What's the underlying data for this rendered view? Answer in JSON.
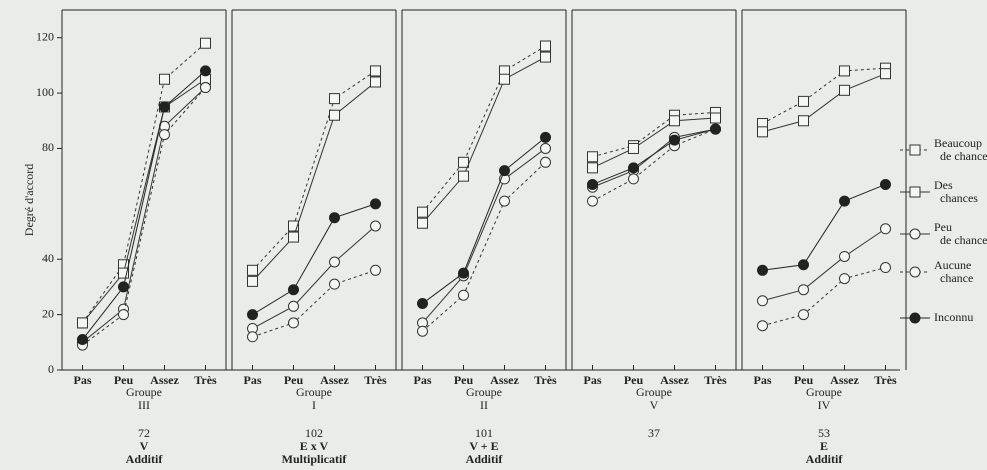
{
  "chart_data": [
    {
      "type": "line",
      "y_label": "Degré d'accord",
      "ylim": [
        0,
        130
      ],
      "yticks": [
        0,
        20,
        40,
        80,
        100,
        120
      ],
      "categories": [
        "Pas",
        "Peu",
        "Assez",
        "Très"
      ],
      "x_label": "Groupe",
      "group": "III",
      "number": "72",
      "code": "V",
      "model": "Additif",
      "series": [
        {
          "name": "Beaucoup de chances",
          "color": "#333",
          "marker": "square",
          "dashed": true,
          "values": [
            17,
            38,
            105,
            118
          ]
        },
        {
          "name": "Des chances",
          "color": "#333",
          "marker": "square",
          "dashed": false,
          "values": [
            17,
            35,
            95,
            105
          ]
        },
        {
          "name": "Peu de chances",
          "color": "#333",
          "marker": "circle",
          "dashed": false,
          "values": [
            10,
            22,
            88,
            102
          ]
        },
        {
          "name": "Aucune chance",
          "color": "#333",
          "marker": "circle",
          "dashed": true,
          "values": [
            9,
            20,
            85,
            102
          ]
        },
        {
          "name": "Inconnu",
          "color": "#222",
          "marker": "filled",
          "dashed": false,
          "values": [
            11,
            30,
            95,
            108
          ]
        }
      ]
    },
    {
      "type": "line",
      "categories": [
        "Pas",
        "Peu",
        "Assez",
        "Très"
      ],
      "x_label": "Groupe",
      "group": "I",
      "number": "102",
      "code": "E x V",
      "model": "Multiplicatif",
      "series": [
        {
          "values": [
            36,
            52,
            98,
            108
          ]
        },
        {
          "values": [
            32,
            48,
            92,
            104
          ]
        },
        {
          "values": [
            15,
            23,
            39,
            52
          ]
        },
        {
          "values": [
            12,
            17,
            31,
            36
          ]
        },
        {
          "values": [
            20,
            29,
            55,
            60
          ]
        }
      ]
    },
    {
      "type": "line",
      "categories": [
        "Pas",
        "Peu",
        "Assez",
        "Très"
      ],
      "x_label": "Groupe",
      "group": "II",
      "number": "101",
      "code": "V + E",
      "model": "Additif",
      "series": [
        {
          "values": [
            57,
            75,
            108,
            117
          ]
        },
        {
          "values": [
            53,
            70,
            105,
            113
          ]
        },
        {
          "values": [
            17,
            34,
            69,
            80
          ]
        },
        {
          "values": [
            14,
            27,
            61,
            75
          ]
        },
        {
          "values": [
            24,
            35,
            72,
            84
          ]
        }
      ]
    },
    {
      "type": "line",
      "categories": [
        "Pas",
        "Peu",
        "Assez",
        "Très"
      ],
      "x_label": "Groupe",
      "group": "V",
      "number": "37",
      "series": [
        {
          "values": [
            77,
            81,
            92,
            93
          ]
        },
        {
          "values": [
            73,
            80,
            90,
            91
          ]
        },
        {
          "values": [
            66,
            72,
            84,
            87
          ]
        },
        {
          "values": [
            61,
            69,
            81,
            87
          ]
        },
        {
          "values": [
            67,
            73,
            83,
            87
          ]
        }
      ]
    },
    {
      "type": "line",
      "categories": [
        "Pas",
        "Peu",
        "Assez",
        "Très"
      ],
      "x_label": "Groupe",
      "group": "IV",
      "number": "53",
      "code": "E",
      "model": "Additif",
      "series": [
        {
          "values": [
            89,
            97,
            108,
            109
          ]
        },
        {
          "values": [
            86,
            90,
            101,
            107
          ]
        },
        {
          "values": [
            25,
            29,
            41,
            51
          ]
        },
        {
          "values": [
            16,
            20,
            33,
            37
          ]
        },
        {
          "values": [
            36,
            38,
            61,
            67
          ]
        }
      ]
    }
  ]
}
